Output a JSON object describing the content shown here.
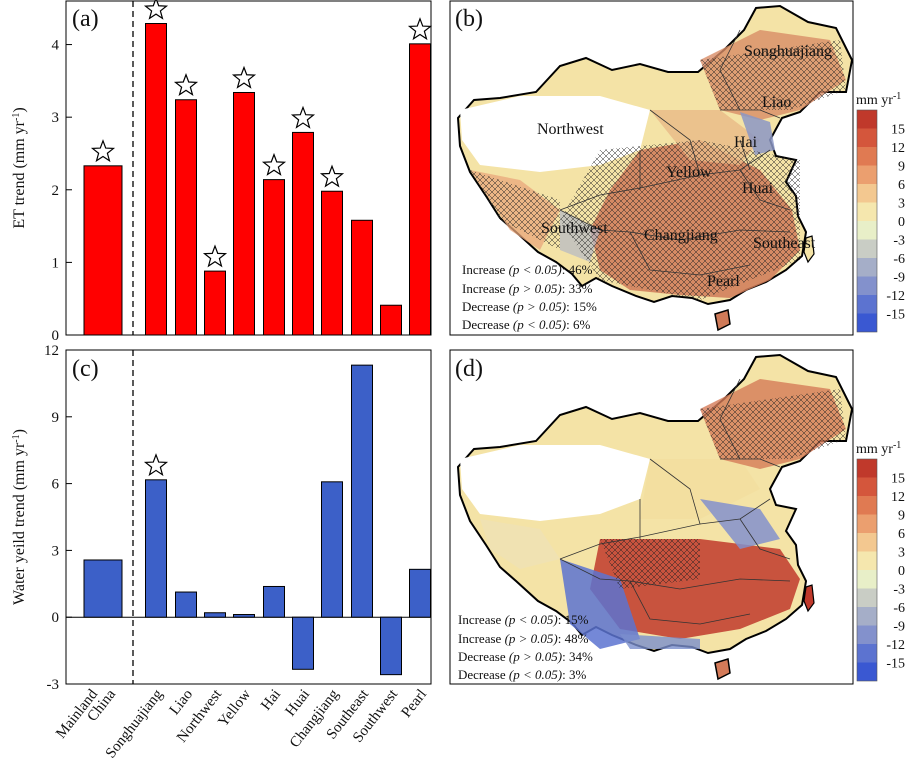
{
  "chart_data": [
    {
      "type": "bar",
      "panel_label": "(a)",
      "ylabel": "ET trend (mm yr-1)",
      "ylim": [
        0,
        4.6
      ],
      "yticks": [
        0,
        1,
        2,
        3,
        4
      ],
      "categories": [
        "Mainland China",
        "Songhuajiang",
        "Liao",
        "Northwest",
        "Yellow",
        "Hai",
        "Huai",
        "Changjiang",
        "Southeast",
        "Southwest",
        "Pearl"
      ],
      "values": [
        2.33,
        4.29,
        3.24,
        0.88,
        3.34,
        2.14,
        2.79,
        1.98,
        1.58,
        0.41,
        4.01
      ],
      "significant": [
        true,
        true,
        true,
        true,
        true,
        true,
        true,
        true,
        false,
        false,
        true
      ],
      "color": "#ff0000"
    },
    {
      "type": "bar",
      "panel_label": "(c)",
      "ylabel": "Water yeild trend (mm yr-1)",
      "ylim": [
        -3,
        12
      ],
      "yticks": [
        -3,
        0,
        3,
        6,
        9,
        12
      ],
      "categories": [
        "Mainland China",
        "Songhuajiang",
        "Liao",
        "Northwest",
        "Yellow",
        "Hai",
        "Huai",
        "Changjiang",
        "Southeast",
        "Southwest",
        "Pearl"
      ],
      "values": [
        2.57,
        6.17,
        1.13,
        0.2,
        0.12,
        1.38,
        -2.34,
        6.08,
        11.32,
        -2.58,
        2.15
      ],
      "significant": [
        false,
        true,
        false,
        false,
        false,
        false,
        false,
        false,
        false,
        false,
        false
      ],
      "color": "#3c60c8"
    },
    {
      "type": "heatmap",
      "panel_label": "(b)",
      "colorbar_title": "mm yr-1",
      "colorbar_ticks": [
        "15",
        "12",
        "9",
        "6",
        "3",
        "0",
        "-3",
        "-6",
        "-9",
        "-12",
        "-15"
      ],
      "region_labels": [
        "Songhuajiang",
        "Liao",
        "Northwest",
        "Hai",
        "Yellow",
        "Huai",
        "Southwest",
        "Changjiang",
        "Southeast",
        "Pearl"
      ],
      "stats": [
        {
          "label": "Increase",
          "cond": "(p < 0.05)",
          "pct": "46%"
        },
        {
          "label": "Increase",
          "cond": "(p > 0.05)",
          "pct": "33%"
        },
        {
          "label": "Decrease",
          "cond": "(p > 0.05)",
          "pct": "15%"
        },
        {
          "label": "Decrease",
          "cond": "(p < 0.05)",
          "pct": "6%"
        }
      ]
    },
    {
      "type": "heatmap",
      "panel_label": "(d)",
      "colorbar_title": "mm yr-1",
      "colorbar_ticks": [
        "15",
        "12",
        "9",
        "6",
        "3",
        "0",
        "-3",
        "-6",
        "-9",
        "-12",
        "-15"
      ],
      "stats": [
        {
          "label": "Increase",
          "cond": "(p < 0.05)",
          "pct": "15%"
        },
        {
          "label": "Increase",
          "cond": "(p > 0.05)",
          "pct": "48%"
        },
        {
          "label": "Decrease",
          "cond": "(p > 0.05)",
          "pct": "34%"
        },
        {
          "label": "Decrease",
          "cond": "(p < 0.05)",
          "pct": "3%"
        }
      ]
    }
  ],
  "colorbar_colors": [
    "#c0392b",
    "#d4563c",
    "#e07a52",
    "#eb9f6f",
    "#f3c890",
    "#f5e7ae",
    "#e8efc8",
    "#c9cdc5",
    "#a5aec8",
    "#8391cc",
    "#5c73d0",
    "#3a58d2"
  ]
}
